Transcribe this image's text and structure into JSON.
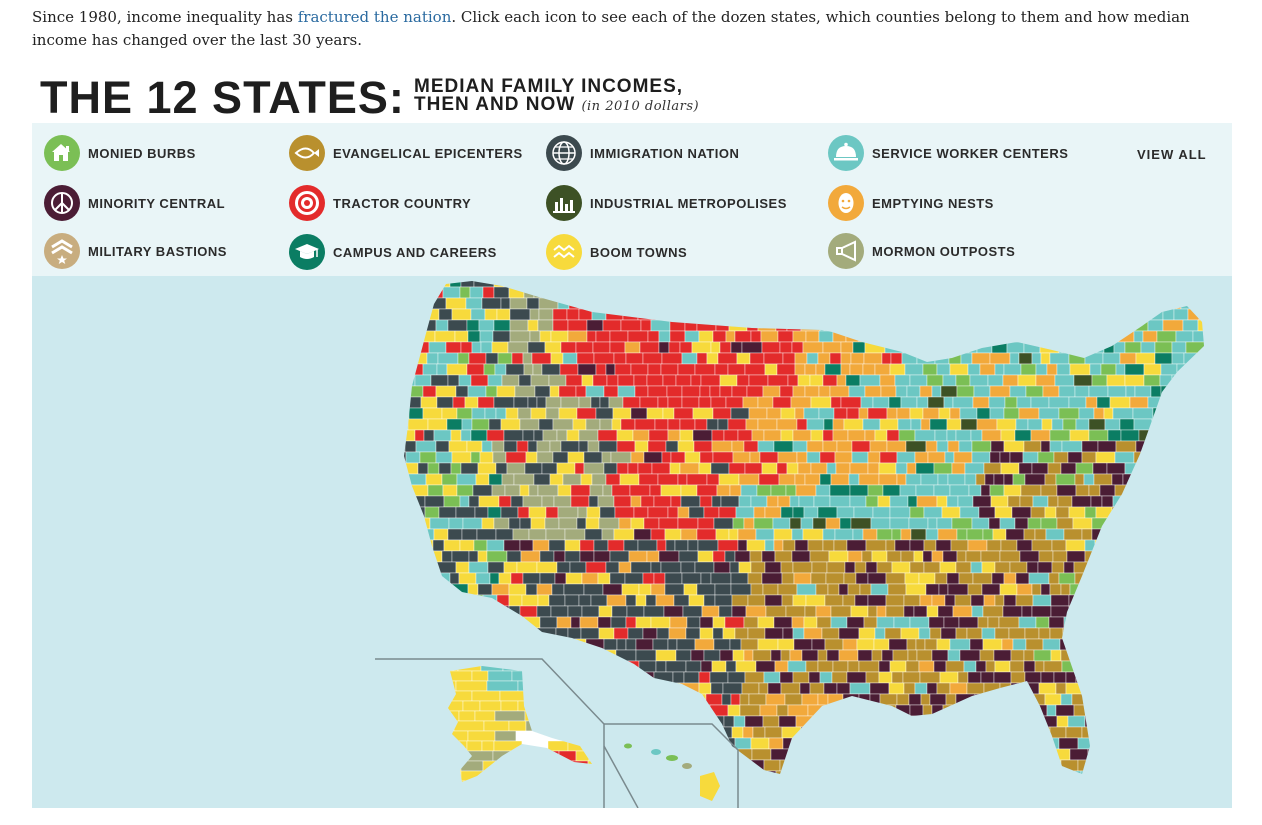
{
  "intro": {
    "before_link": "Since 1980, income inequality has ",
    "link_text": "fractured the nation",
    "after_link": ". Click each icon to see each of the dozen states, which counties belong to them and how median income has changed over the last 30 years."
  },
  "header": {
    "title": "THE 12 STATES:",
    "subtitle_line1": "MEDIAN FAMILY INCOMES,",
    "subtitle_line2": "THEN AND NOW",
    "subtitle_note": "(in 2010 dollars)"
  },
  "legend": {
    "view_all": "VIEW ALL",
    "items": [
      {
        "label": "MONIED BURBS",
        "icon": "house-icon",
        "color": "#7bbf55"
      },
      {
        "label": "EVANGELICAL EPICENTERS",
        "icon": "fish-icon",
        "color": "#b9902e"
      },
      {
        "label": "IMMIGRATION NATION",
        "icon": "globe-icon",
        "color": "#3c4a4f"
      },
      {
        "label": "SERVICE WORKER CENTERS",
        "icon": "cloche-icon",
        "color": "#6cc7c3"
      },
      {
        "label": "MINORITY CENTRAL",
        "icon": "peace-icon",
        "color": "#4b1d35"
      },
      {
        "label": "TRACTOR COUNTRY",
        "icon": "target-icon",
        "color": "#e32b2b"
      },
      {
        "label": "INDUSTRIAL METROPOLISES",
        "icon": "factory-icon",
        "color": "#3d5125"
      },
      {
        "label": "EMPTYING NESTS",
        "icon": "face-icon",
        "color": "#f2a93b"
      },
      {
        "label": "MILITARY BASTIONS",
        "icon": "chevron-icon",
        "color": "#c8ad7f"
      },
      {
        "label": "CAMPUS AND CAREERS",
        "icon": "mortarboard-icon",
        "color": "#0b7d63"
      },
      {
        "label": "BOOM TOWNS",
        "icon": "waves-icon",
        "color": "#f7da3c"
      },
      {
        "label": "MORMON OUTPOSTS",
        "icon": "megaphone-icon",
        "color": "#a3ab7c"
      }
    ]
  },
  "map": {
    "background_color": "#cde9ee",
    "land_color": "#bcdfe0",
    "region_colors": {
      "monied_burbs": "#7bbf55",
      "evangelical_epicenters": "#b9902e",
      "immigration_nation": "#3c4a4f",
      "service_worker_centers": "#6cc7c3",
      "minority_central": "#4b1d35",
      "tractor_country": "#e32b2b",
      "industrial_metropolises": "#3d5125",
      "emptying_nests": "#f2a93b",
      "military_bastions": "#c8ad7f",
      "campus_and_careers": "#0b7d63",
      "boom_towns": "#f7da3c",
      "mormon_outposts": "#a3ab7c"
    }
  }
}
